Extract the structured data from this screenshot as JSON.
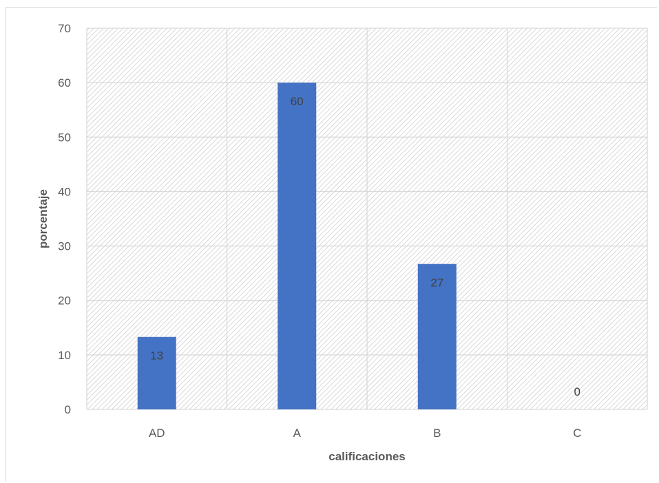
{
  "chart_data": {
    "type": "bar",
    "categories": [
      "AD",
      "A",
      "B",
      "C"
    ],
    "values": [
      13.3,
      60,
      26.7,
      0
    ],
    "data_labels": [
      "13",
      "60",
      "27",
      "0"
    ],
    "xlabel": "calificaciones",
    "ylabel": "porcentaje",
    "ylim": [
      0,
      70
    ],
    "yticks": [
      "0",
      "10",
      "20",
      "30",
      "40",
      "50",
      "60",
      "70"
    ],
    "grid": true,
    "bar_color": "#4472c4",
    "plot_background": "hatched light gray diagonal",
    "legend": "none"
  }
}
